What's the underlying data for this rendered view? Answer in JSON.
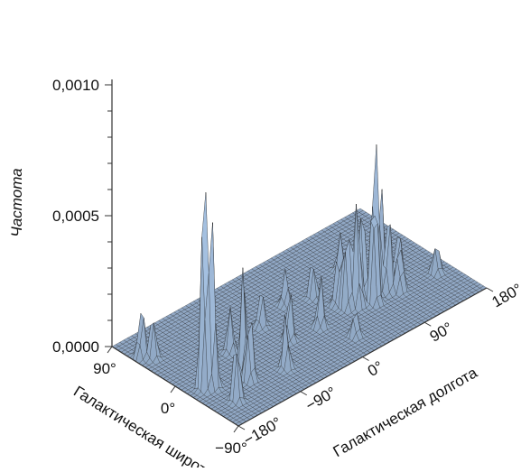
{
  "chart_data": {
    "type": "surface",
    "zlabel": "Частота",
    "xlabel": "Галактическая широта",
    "ylabel": "Галактическая долгота",
    "z_ticks": [
      "0,0000",
      "0,0005",
      "0,0010"
    ],
    "z_range": [
      0,
      0.001
    ],
    "lat_ticks": [
      "90°",
      "0°",
      "−90°"
    ],
    "lat_range": [
      90,
      -90
    ],
    "lon_ticks": [
      "−180°",
      "−90°",
      "0°",
      "90°",
      "180°"
    ],
    "lon_range": [
      -180,
      180
    ],
    "surface_color": "#a9c5e6",
    "mesh_color": "#1a1a1a",
    "grid": false,
    "peaks": [
      {
        "lat": -22,
        "lon": -160,
        "z": 0.00103
      },
      {
        "lat": -26,
        "lon": -152,
        "z": 0.00062
      },
      {
        "lat": 58,
        "lon": -170,
        "z": 0.00022
      },
      {
        "lat": 49,
        "lon": -162,
        "z": 0.00018
      },
      {
        "lat": -58,
        "lon": -150,
        "z": 0.00028
      },
      {
        "lat": -42,
        "lon": -115,
        "z": 0.00032
      },
      {
        "lat": -30,
        "lon": -112,
        "z": 0.00041
      },
      {
        "lat": -20,
        "lon": -100,
        "z": 0.00034
      },
      {
        "lat": 10,
        "lon": -118,
        "z": 0.0002
      },
      {
        "lat": 5,
        "lon": -95,
        "z": 0.00018
      },
      {
        "lat": -52,
        "lon": -72,
        "z": 0.00022
      },
      {
        "lat": -20,
        "lon": -35,
        "z": 0.00021
      },
      {
        "lat": 15,
        "lon": -40,
        "z": 0.00015
      },
      {
        "lat": -25,
        "lon": 5,
        "z": 0.0002
      },
      {
        "lat": 25,
        "lon": 5,
        "z": 0.00014
      },
      {
        "lat": -10,
        "lon": 45,
        "z": 0.00018
      },
      {
        "lat": 15,
        "lon": 35,
        "z": 0.00016
      },
      {
        "lat": -20,
        "lon": 48,
        "z": 0.00041
      },
      {
        "lat": -25,
        "lon": 58,
        "z": 0.00048
      },
      {
        "lat": -20,
        "lon": 70,
        "z": 0.0005
      },
      {
        "lat": -32,
        "lon": 76,
        "z": 0.00062
      },
      {
        "lat": -22,
        "lon": 88,
        "z": 0.00072
      },
      {
        "lat": -12,
        "lon": 105,
        "z": 0.00045
      },
      {
        "lat": -28,
        "lon": 100,
        "z": 0.00035
      },
      {
        "lat": -35,
        "lon": 110,
        "z": 0.00022
      },
      {
        "lat": -15,
        "lon": 128,
        "z": 0.0002
      },
      {
        "lat": 10,
        "lon": 130,
        "z": 0.00018
      },
      {
        "lat": -38,
        "lon": 160,
        "z": 0.00014
      },
      {
        "lat": 30,
        "lon": 90,
        "z": 0.00014
      },
      {
        "lat": -60,
        "lon": 20,
        "z": 0.00012
      }
    ]
  }
}
